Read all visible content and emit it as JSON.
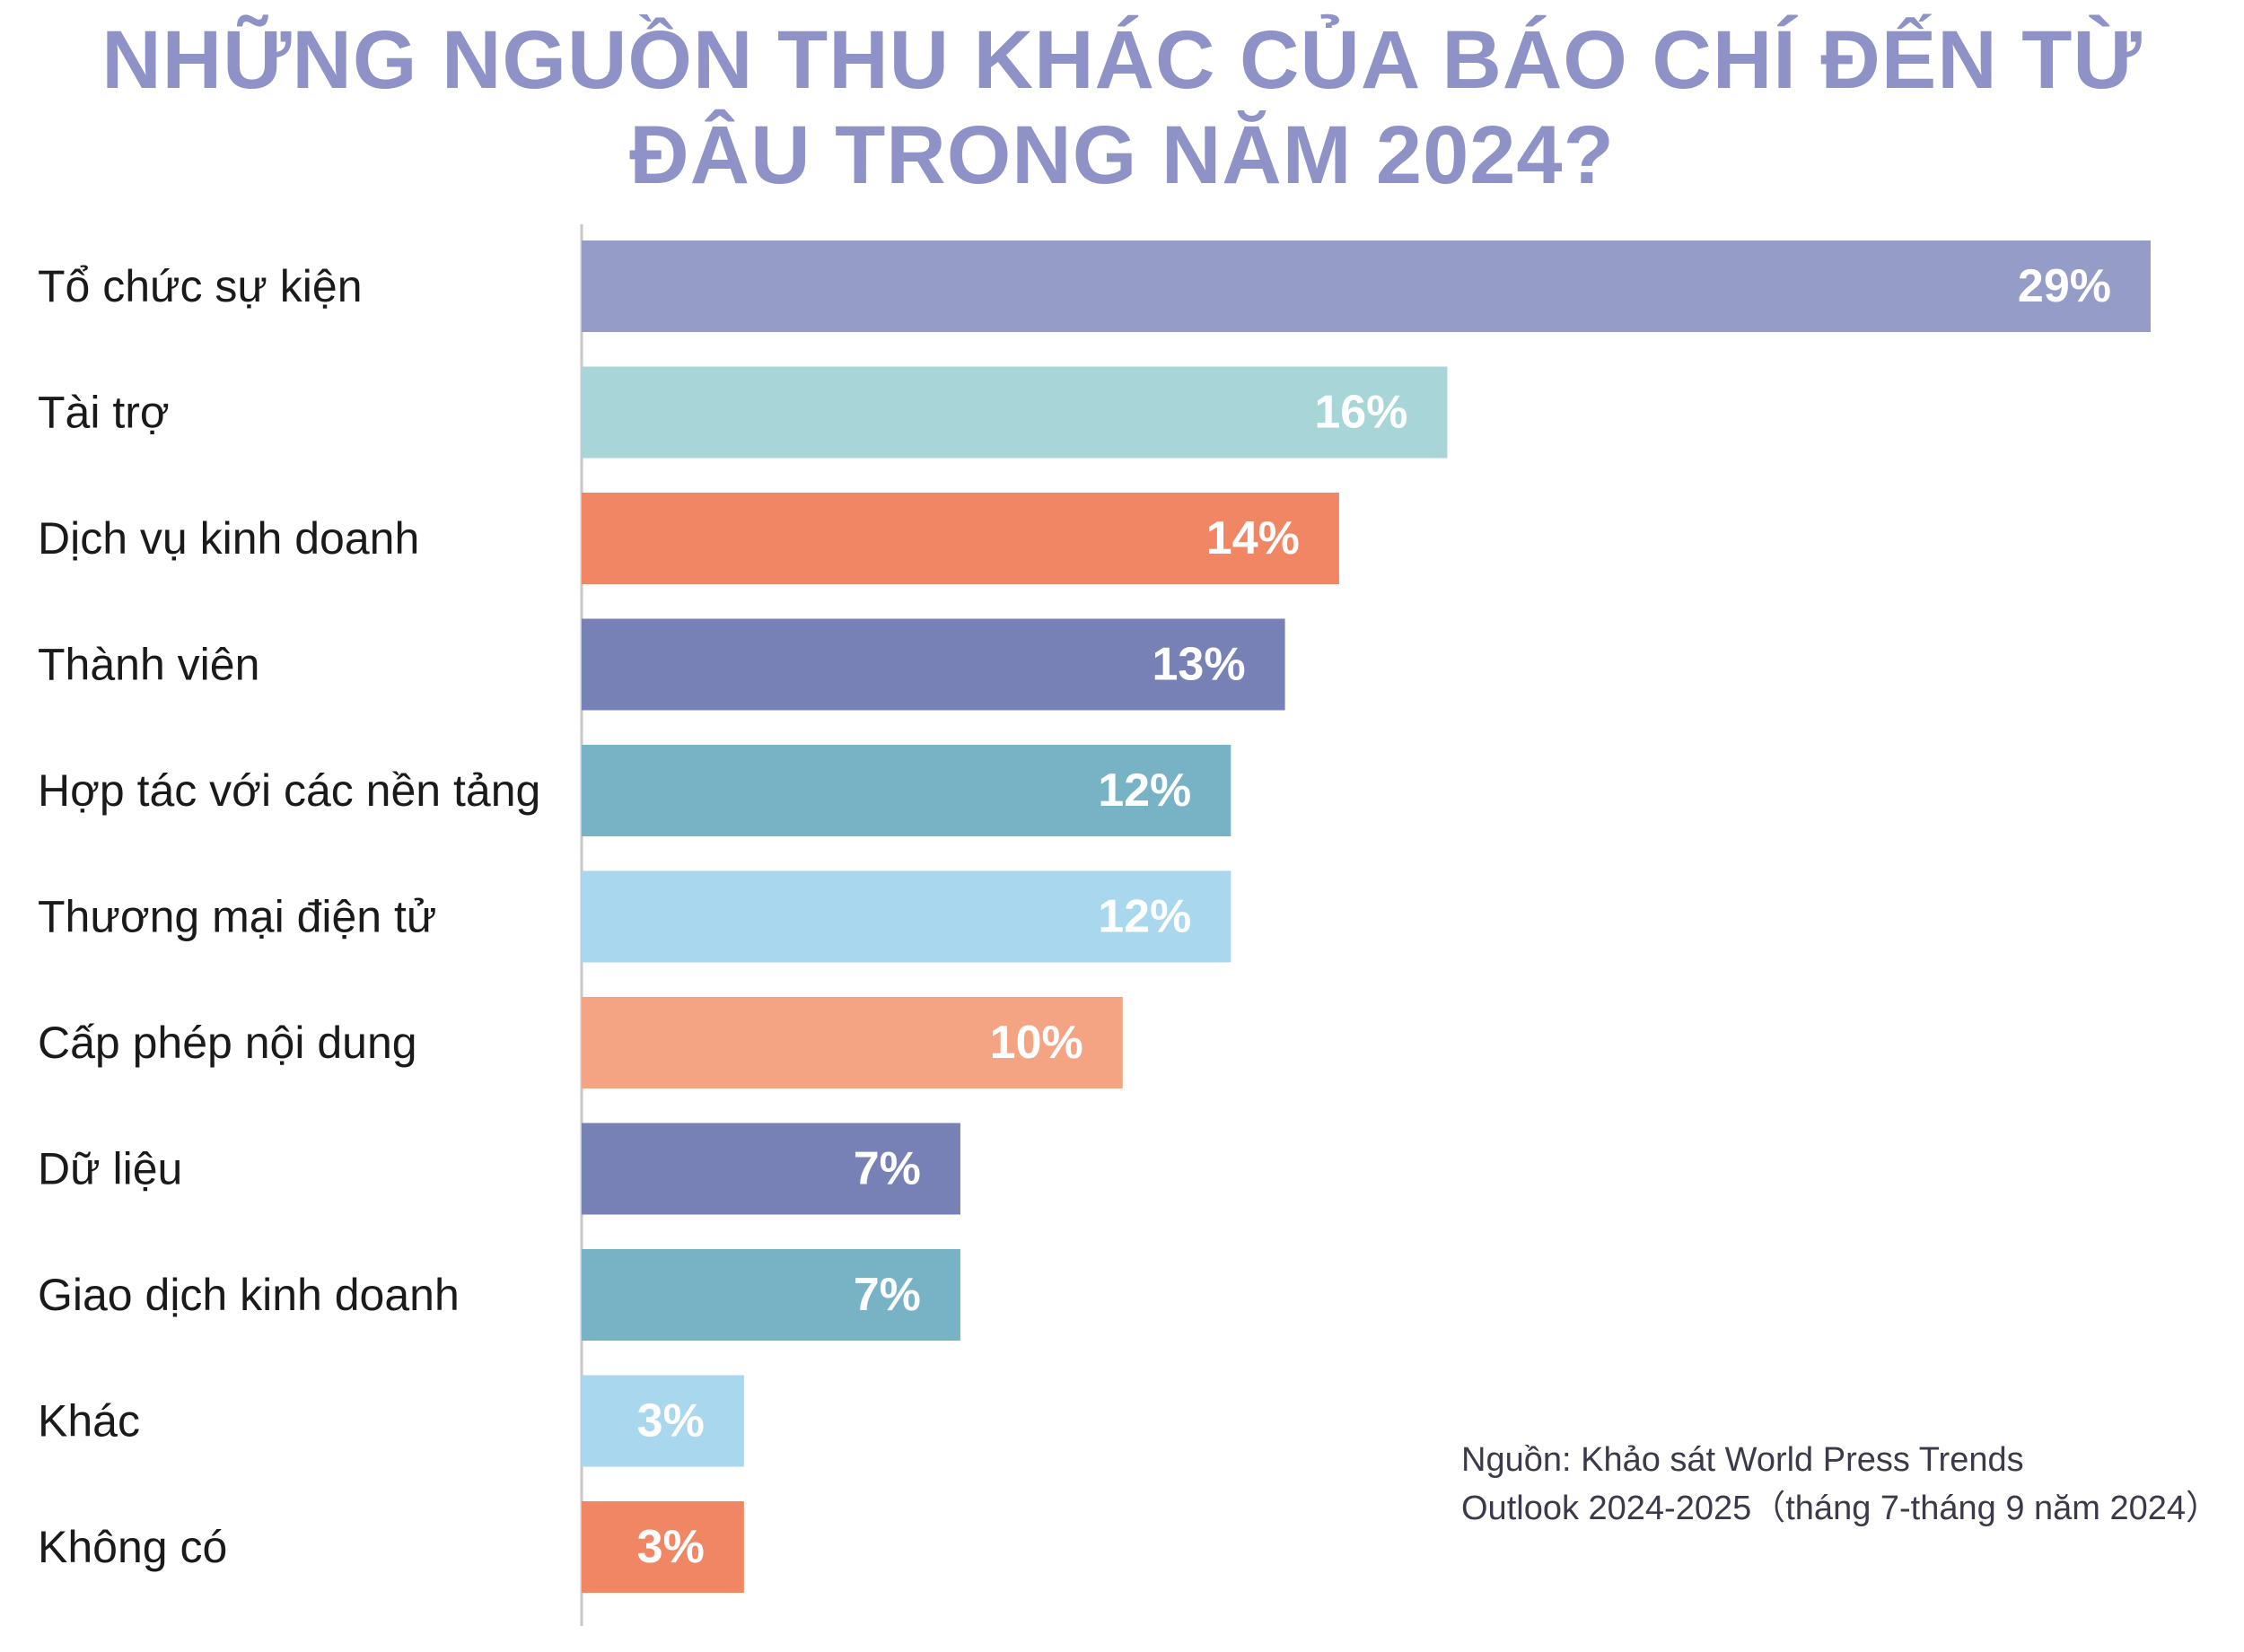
{
  "chart_data": {
    "type": "bar",
    "orientation": "horizontal",
    "title_lines": [
      "NHỮNG NGUỒN THU KHÁC CỦA BÁO CHÍ ĐẾN TỪ",
      "ĐÂU TRONG NĂM 2024?"
    ],
    "categories": [
      "Tổ chức sự kiện",
      "Tài trợ",
      "Dịch vụ kinh doanh",
      "Thành viên",
      "Hợp tác với các nền tảng",
      "Thương mại điện tử",
      "Cấp phép nội dung",
      "Dữ liệu",
      "Giao dịch kinh doanh",
      "Khác",
      "Không có"
    ],
    "values": [
      29,
      16,
      14,
      13,
      12,
      12,
      10,
      7,
      7,
      3,
      3
    ],
    "value_labels": [
      "29%",
      "16%",
      "14%",
      "13%",
      "12%",
      "12%",
      "10%",
      "7%",
      "7%",
      "3%",
      "3%"
    ],
    "unit": "%",
    "colors": [
      "#959cc8",
      "#a8d6d8",
      "#f08664",
      "#7781b6",
      "#77b3c4",
      "#a8d7ee",
      "#f4a383",
      "#7781b6",
      "#77b3c4",
      "#a8d7ee",
      "#f08664"
    ],
    "xlim": [
      0,
      30
    ],
    "grid": false,
    "legend": "none"
  },
  "source": {
    "line1": "Nguồn: Khảo sát World Press Trends",
    "line2": "Outlook 2024-2025（tháng 7-tháng 9 năm 2024）"
  },
  "colors": {
    "title": "#8e92c6",
    "axis": "#c8c8c8",
    "label_text": "#1a1a1a",
    "value_text": "#ffffff"
  }
}
